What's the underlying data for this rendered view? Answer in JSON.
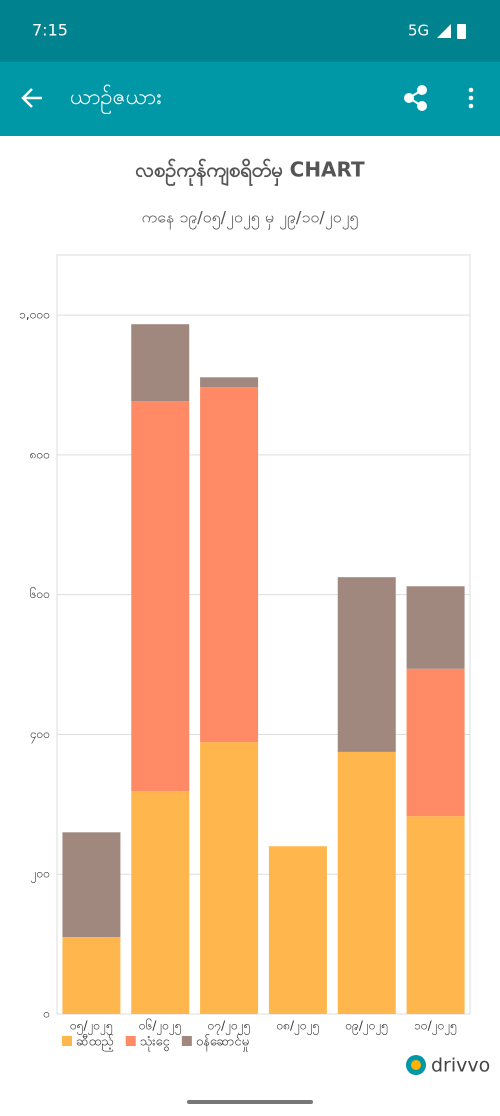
{
  "status_bar": {
    "time": "7:15",
    "network": "5G"
  },
  "app_bar": {
    "title": "ယာဉ်ဇယား"
  },
  "chart_data": {
    "type": "bar",
    "stacked": true,
    "title": "လစဉ်ကုန်ကျစရိတ်မှ CHART",
    "subtitle": "ကနေ ၁၉/၀၅/၂၀၂၅ မှ ၂၉/၁၀/၂၀၂၅",
    "categories": [
      "၀၅/၂၀၂၅",
      "၀၆/၂၀၂၅",
      "၀၇/၂၀၂၅",
      "၀၈/၂၀၂၅",
      "၀၉/၂၀၂၅",
      "၁၀/၂၀၂၅"
    ],
    "series": [
      {
        "name": "ဆီထည့်",
        "color": "#ffb74d",
        "values": [
          110,
          319,
          389,
          240,
          375,
          283
        ]
      },
      {
        "name": "သုံးငွေ",
        "color": "#ff8a65",
        "values": [
          null,
          558,
          508,
          null,
          null,
          211
        ]
      },
      {
        "name": "ဝန်ဆောင်မှု",
        "color": "#a1887f",
        "values": [
          150,
          110,
          14,
          null,
          250,
          118
        ]
      }
    ],
    "ylim": [
      0,
      1086
    ],
    "yticks": [
      {
        "value": 0,
        "label": "၀"
      },
      {
        "value": 200,
        "label": "၂၀၀"
      },
      {
        "value": 400,
        "label": "၄၀၀"
      },
      {
        "value": 600,
        "label": "၆၀၀"
      },
      {
        "value": 800,
        "label": "၈၀၀"
      },
      {
        "value": 1000,
        "label": "၁,၀၀၀"
      }
    ],
    "grid": true,
    "legend": "bottom-left"
  },
  "branding": {
    "logo_text": "drivvo"
  }
}
